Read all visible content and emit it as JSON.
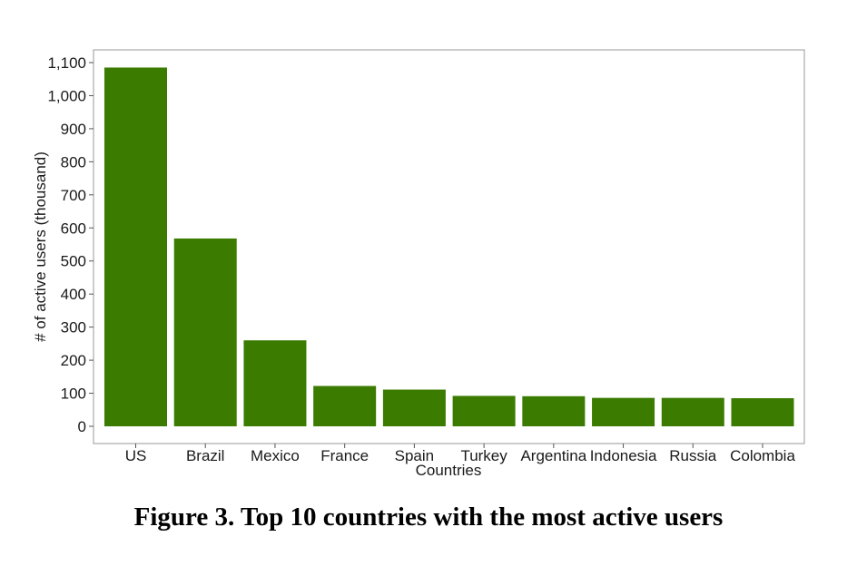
{
  "caption": "Figure 3. Top 10 countries with the most active users",
  "chart_data": {
    "type": "bar",
    "categories": [
      "US",
      "Brazil",
      "Mexico",
      "France",
      "Spain",
      "Turkey",
      "Argentina",
      "Indonesia",
      "Russia",
      "Colombia"
    ],
    "values": [
      1085,
      568,
      260,
      122,
      111,
      92,
      91,
      86,
      86,
      85
    ],
    "xlabel": "Countries",
    "ylabel": "# of active users (thousand)",
    "ylim": [
      0,
      1100
    ],
    "yticks": [
      0,
      100,
      200,
      300,
      400,
      500,
      600,
      700,
      800,
      900,
      1000,
      1100
    ],
    "ytick_labels": [
      "0",
      "100",
      "200",
      "300",
      "400",
      "500",
      "600",
      "700",
      "800",
      "900",
      "1,000",
      "1,100"
    ],
    "bar_color": "#3a7b00",
    "grid": false,
    "legend": "none"
  }
}
